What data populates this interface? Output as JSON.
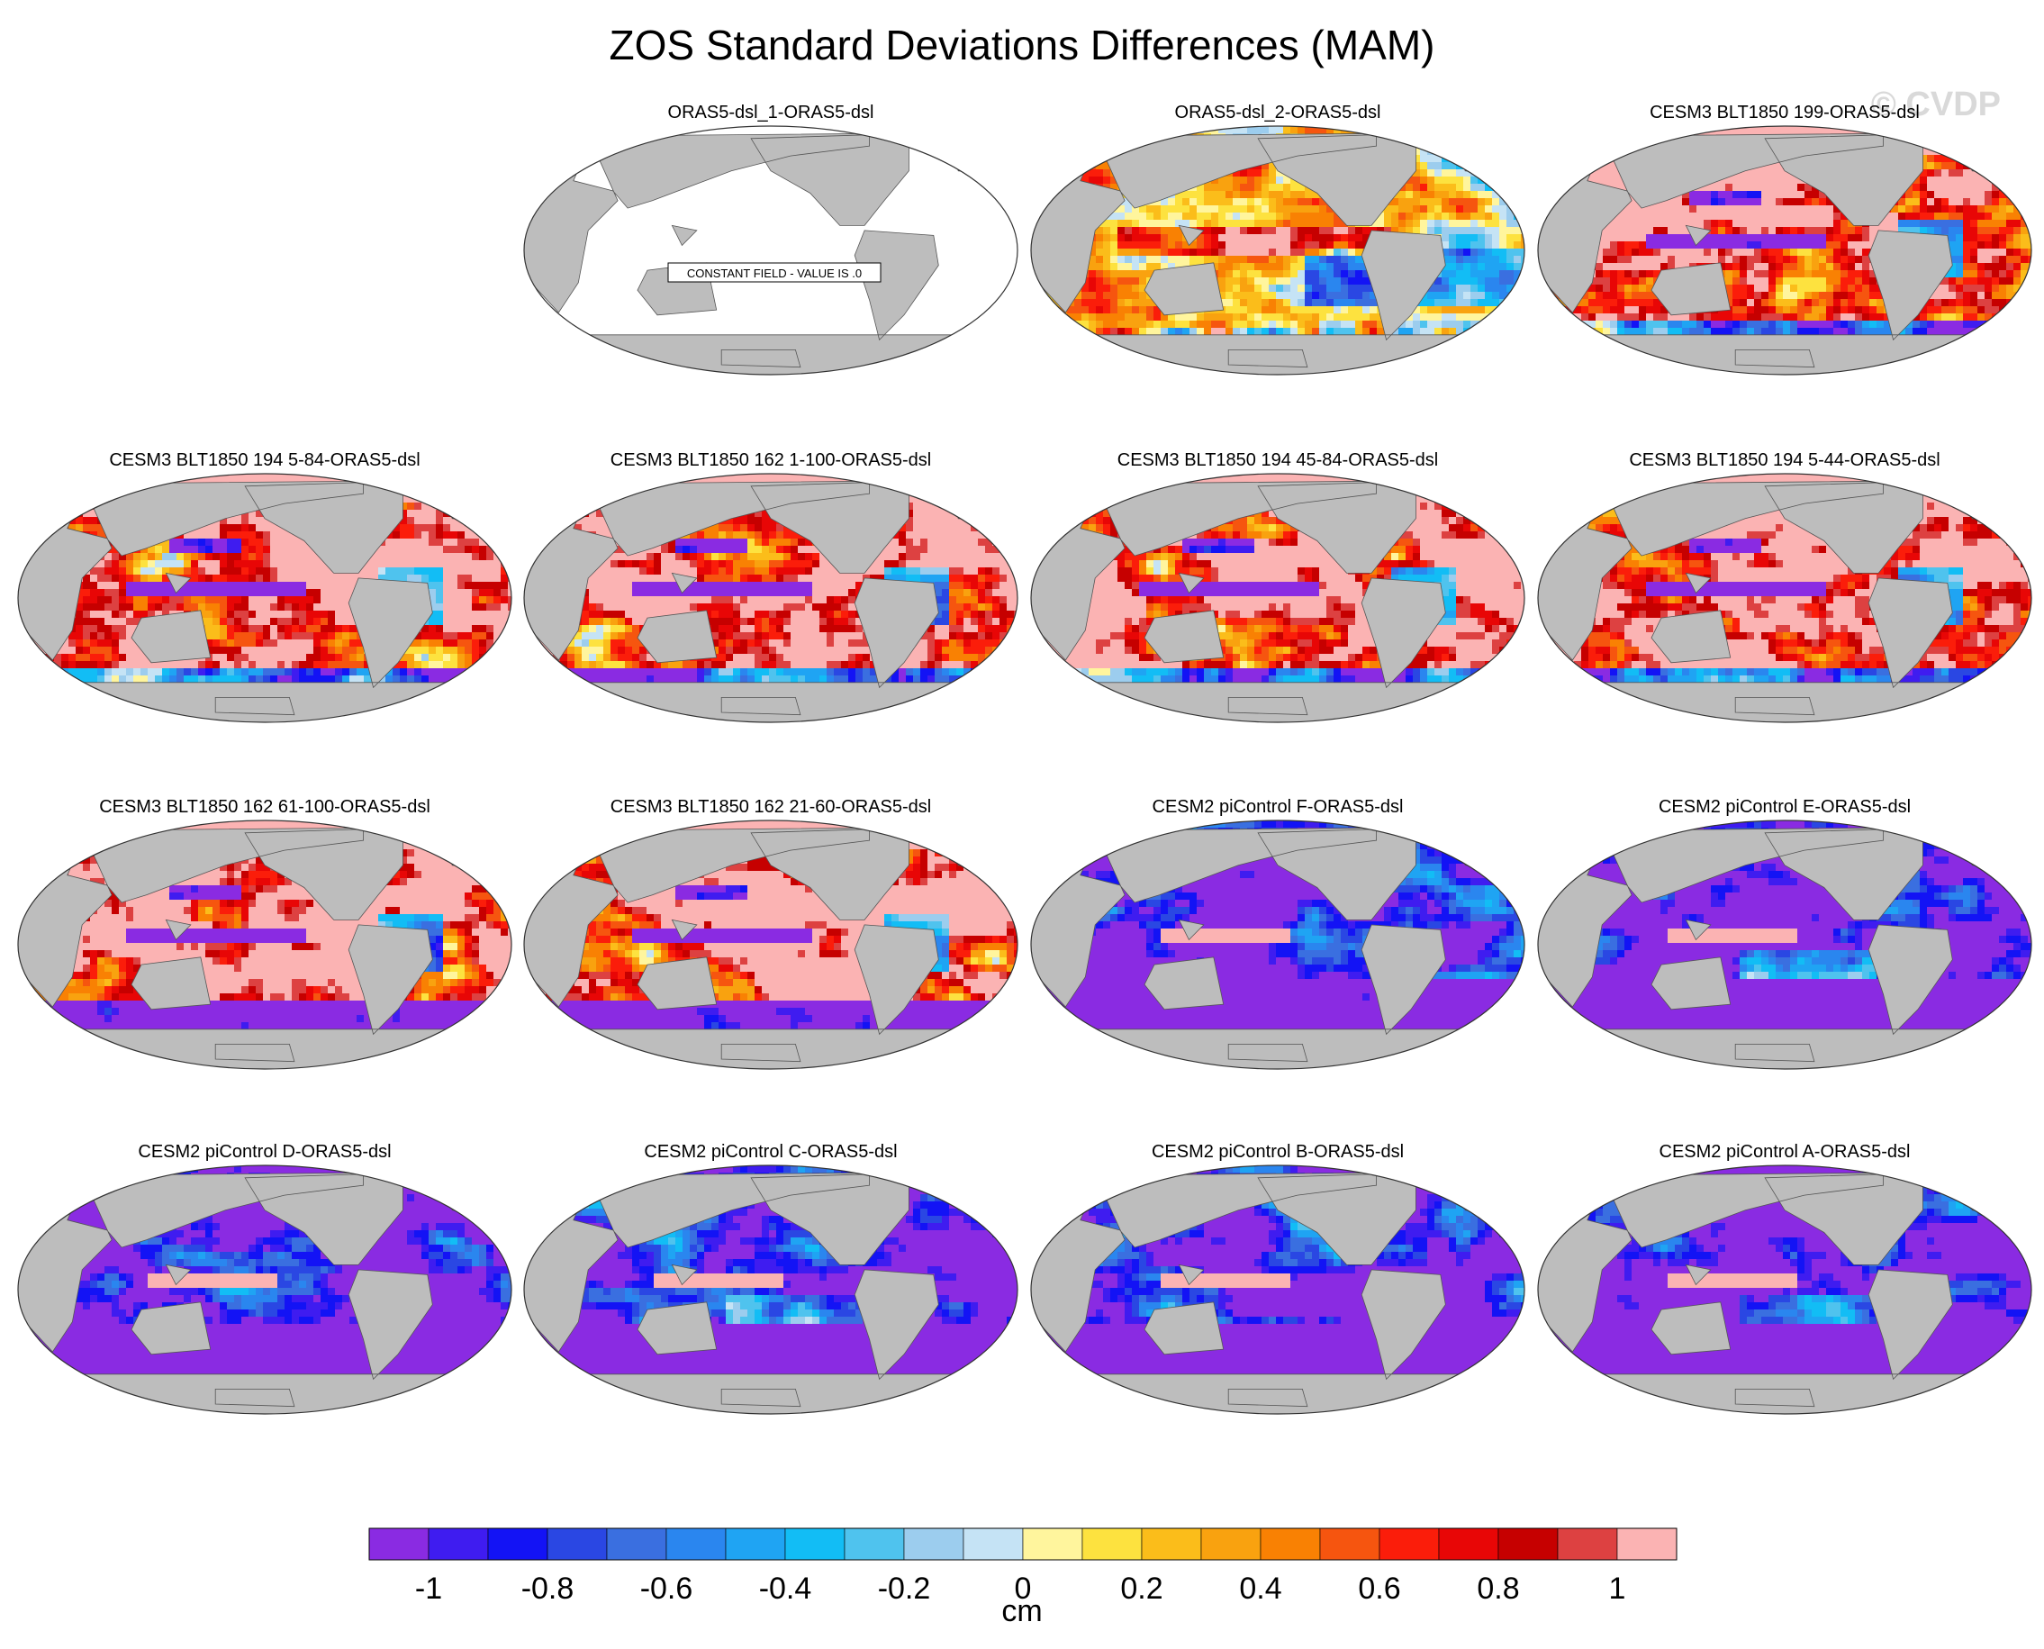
{
  "chart_data": {
    "type": "heatmap",
    "title": "ZOS Standard Deviations Differences (MAM)",
    "watermark": "© CVDP",
    "colorbar": {
      "unit_label": "cm",
      "tick_labels": [
        "-1",
        "-0.8",
        "-0.6",
        "-0.4",
        "-0.2",
        "0",
        "0.2",
        "0.4",
        "0.6",
        "0.8",
        "1"
      ],
      "range": [
        -1,
        1
      ],
      "colors": [
        "#8a2be2",
        "#3f1cf0",
        "#1313f5",
        "#2a47e3",
        "#3a6fe0",
        "#2a86ef",
        "#1fa4f3",
        "#12bdf5",
        "#4fc3ee",
        "#9ccdee",
        "#c5e3f5",
        "#fff59d",
        "#fde23f",
        "#fbbd1a",
        "#f9a20f",
        "#f98103",
        "#f6550f",
        "#fb1d0a",
        "#e80606",
        "#c60000",
        "#dd4141",
        "#fbb3b3"
      ]
    },
    "panels": [
      {
        "label": "ORAS5-dsl_1-ORAS5-dsl",
        "kind": "constant",
        "note": "CONSTANT FIELD - VALUE IS .0"
      },
      {
        "label": "ORAS5-dsl_2-ORAS5-dsl",
        "kind": "mixed"
      },
      {
        "label": "CESM3 BLT1850 199-ORAS5-dsl",
        "kind": "positive"
      },
      {
        "label": "CESM3 BLT1850 194 5-84-ORAS5-dsl",
        "kind": "positive"
      },
      {
        "label": "CESM3 BLT1850 162 1-100-ORAS5-dsl",
        "kind": "positive"
      },
      {
        "label": "CESM3 BLT1850 194 45-84-ORAS5-dsl",
        "kind": "positive"
      },
      {
        "label": "CESM3 BLT1850 194 5-44-ORAS5-dsl",
        "kind": "positive"
      },
      {
        "label": "CESM3 BLT1850 162 61-100-ORAS5-dsl",
        "kind": "positive_south_neg"
      },
      {
        "label": "CESM3 BLT1850 162 21-60-ORAS5-dsl",
        "kind": "positive_south_neg"
      },
      {
        "label": "CESM2 piControl F-ORAS5-dsl",
        "kind": "negative"
      },
      {
        "label": "CESM2 piControl E-ORAS5-dsl",
        "kind": "negative"
      },
      {
        "label": "CESM2 piControl D-ORAS5-dsl",
        "kind": "negative"
      },
      {
        "label": "CESM2 piControl C-ORAS5-dsl",
        "kind": "negative"
      },
      {
        "label": "CESM2 piControl B-ORAS5-dsl",
        "kind": "negative"
      },
      {
        "label": "CESM2 piControl A-ORAS5-dsl",
        "kind": "negative"
      }
    ]
  }
}
